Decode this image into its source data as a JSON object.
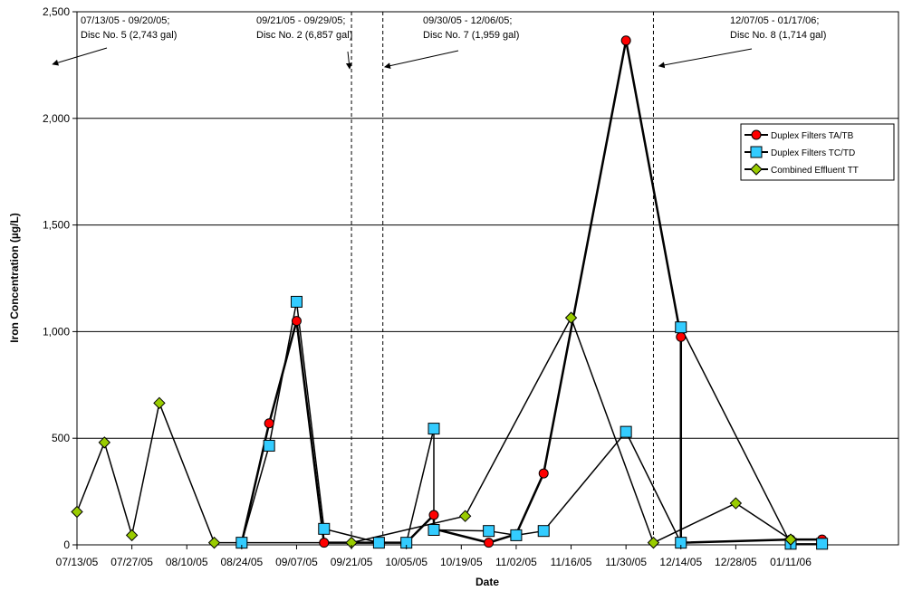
{
  "chart_data": {
    "type": "line",
    "title": "",
    "xlabel": "Date",
    "ylabel": "Iron Concentration (µg/L)",
    "ylim": [
      0,
      2500
    ],
    "yticks": [
      "0",
      "500",
      "1,000",
      "1,500",
      "2,000",
      "2,500"
    ],
    "ytick_values": [
      0,
      500,
      1000,
      1500,
      2000,
      2500
    ],
    "xlim": [
      "07/13/05",
      "01/17/06"
    ],
    "xticks": [
      "07/13/05",
      "07/27/05",
      "08/10/05",
      "08/24/05",
      "09/07/05",
      "09/21/05",
      "10/05/05",
      "10/19/05",
      "11/02/05",
      "11/16/05",
      "11/30/05",
      "12/14/05",
      "12/28/05",
      "01/11/06"
    ],
    "grid": "horizontal",
    "legend_position": "right",
    "series": [
      {
        "name": "Duplex Filters TA/TB",
        "color": "#ff0000",
        "marker": "circle",
        "points": [
          [
            "08/24/05",
            10
          ],
          [
            "08/31/05",
            570
          ],
          [
            "09/07/05",
            1050
          ],
          [
            "09/14/05",
            10
          ],
          [
            "09/28/05",
            10
          ],
          [
            "10/05/05",
            10
          ],
          [
            "10/12/05",
            140
          ],
          [
            "10/12/05",
            75
          ],
          [
            "10/26/05",
            10
          ],
          [
            "11/02/05",
            50
          ],
          [
            "11/09/05",
            335
          ],
          [
            "11/30/05",
            2365
          ],
          [
            "12/14/05",
            975
          ],
          [
            "12/14/05",
            10
          ],
          [
            "01/11/06",
            25
          ],
          [
            "01/19/06",
            25
          ]
        ]
      },
      {
        "name": "Duplex Filters TC/TD",
        "color": "#33ccff",
        "marker": "square",
        "points": [
          [
            "08/24/05",
            10
          ],
          [
            "08/31/05",
            465
          ],
          [
            "09/07/05",
            1140
          ],
          [
            "09/14/05",
            75
          ],
          [
            "09/28/05",
            10
          ],
          [
            "10/05/05",
            10
          ],
          [
            "10/12/05",
            545
          ],
          [
            "10/12/05",
            70
          ],
          [
            "10/26/05",
            65
          ],
          [
            "11/02/05",
            45
          ],
          [
            "11/09/05",
            65
          ],
          [
            "11/30/05",
            530
          ],
          [
            "12/14/05",
            10
          ],
          [
            "12/14/05",
            1020
          ],
          [
            "01/11/06",
            5
          ],
          [
            "01/19/06",
            5
          ]
        ]
      },
      {
        "name": "Combined Effluent TT",
        "color": "#99cc00",
        "marker": "diamond",
        "points": [
          [
            "07/13/05",
            155
          ],
          [
            "07/20/05",
            480
          ],
          [
            "07/27/05",
            45
          ],
          [
            "08/03/05",
            665
          ],
          [
            "08/17/05",
            10
          ],
          [
            "09/21/05",
            10
          ],
          [
            "10/20/05",
            135
          ],
          [
            "11/16/05",
            1065
          ],
          [
            "12/07/05",
            10
          ],
          [
            "12/28/05",
            195
          ],
          [
            "01/11/06",
            25
          ]
        ]
      }
    ],
    "thin_line": {
      "color": "#000080",
      "points": [
        [
          "10/12/05",
          75
        ],
        [
          "10/26/05",
          10
        ]
      ]
    },
    "periods": [
      {
        "boundary": "09/21/05",
        "label_lines": [
          "07/13/05 - 09/20/05;",
          "Disc No. 5 (2,743 gal)"
        ],
        "arrow_to": "left_edge"
      },
      {
        "boundary": "09/21/05",
        "label_lines": [
          "09/21/05 - 09/29/05;",
          "Disc No. 2 (6,857 gal)"
        ],
        "arrow_to": "line1"
      },
      {
        "boundary": "09/29/05",
        "label_lines": [
          "09/30/05 - 12/06/05;",
          "Disc No. 7 (1,959 gal)"
        ],
        "arrow_to": "line2"
      },
      {
        "boundary": "12/07/05",
        "label_lines": [
          "12/07/05 - 01/17/06;",
          "Disc No. 8 (1,714 gal)"
        ],
        "arrow_to": "line3"
      }
    ]
  }
}
